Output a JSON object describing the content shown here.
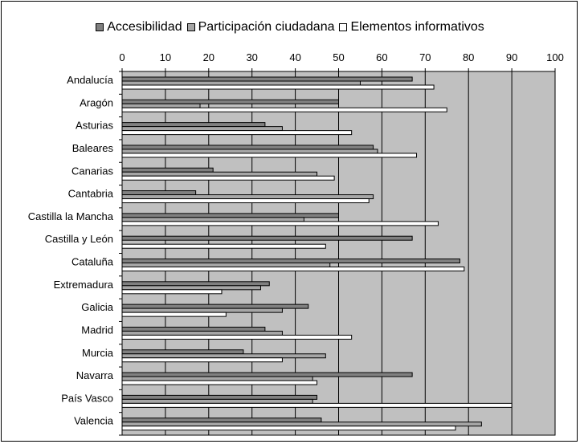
{
  "chart_data": {
    "type": "bar",
    "orientation": "horizontal",
    "title": "",
    "xlabel": "",
    "ylabel": "",
    "xlim": [
      0,
      100
    ],
    "x_ticks": [
      0,
      10,
      20,
      30,
      40,
      50,
      60,
      70,
      80,
      90,
      100
    ],
    "grid": "vertical",
    "legend_position": "top",
    "plot_background": "#c0c0c0",
    "categories": [
      "Andalucía",
      "Aragón",
      "Asturias",
      "Baleares",
      "Canarias",
      "Cantabria",
      "Castilla la Mancha",
      "Castilla y León",
      "Cataluña",
      "Extremadura",
      "Galicia",
      "Madrid",
      "Murcia",
      "Navarra",
      "País Vasco",
      "Valencia"
    ],
    "series": [
      {
        "name": "Accesibilidad",
        "color": "#808080",
        "values": [
          67,
          50,
          33,
          58,
          21,
          17,
          50,
          67,
          78,
          34,
          43,
          33,
          28,
          67,
          45,
          46
        ]
      },
      {
        "name": "Participación ciudadana",
        "color": "#a6a6a6",
        "values": [
          55,
          18,
          37,
          59,
          45,
          58,
          42,
          0,
          48,
          32,
          37,
          37,
          47,
          44,
          44,
          83
        ]
      },
      {
        "name": "Elementos informativos",
        "color": "#ffffff",
        "values": [
          72,
          75,
          53,
          68,
          49,
          57,
          73,
          47,
          79,
          23,
          24,
          53,
          37,
          45,
          90,
          77
        ]
      }
    ]
  }
}
